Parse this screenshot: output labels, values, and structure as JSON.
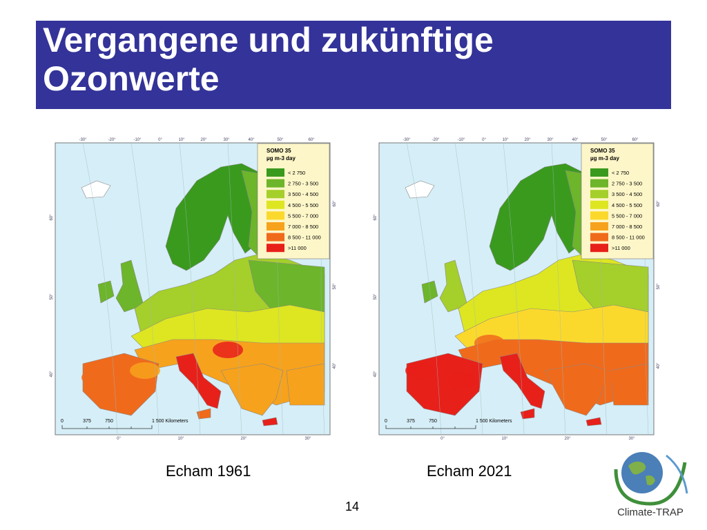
{
  "title": "Vergangene und zukünftige Ozonwerte",
  "legend": {
    "title": "SOMO 35",
    "unit": "µg m-3 day",
    "items": [
      {
        "label": "< 2 750",
        "color": "#3a9a1e"
      },
      {
        "label": "2 750 - 3 500",
        "color": "#6db52a"
      },
      {
        "label": "3 500 - 4 500",
        "color": "#a5cf2a"
      },
      {
        "label": "4 500 - 5 500",
        "color": "#dde620"
      },
      {
        "label": "5 500 - 7 000",
        "color": "#fbd92c"
      },
      {
        "label": "7 000 - 8 500",
        "color": "#f7a21c"
      },
      {
        "label": "8 500 - 11 000",
        "color": "#f06a1c"
      },
      {
        "label": ">11 000",
        "color": "#e8201a"
      }
    ]
  },
  "scale_bar": [
    "0",
    "375",
    "750",
    "1 500 Kilometers"
  ],
  "graticule": {
    "top": [
      "-30°",
      "-20°",
      "-10°",
      "0°",
      "10°",
      "20°",
      "30°",
      "40°",
      "50°",
      "60°"
    ],
    "left": [
      "60°",
      "50°",
      "40°"
    ],
    "right": [
      "60°",
      "50°",
      "40°"
    ],
    "bottom": [
      "0°",
      "10°",
      "20°",
      "30°"
    ]
  },
  "maps": [
    {
      "caption": "Echam 1961"
    },
    {
      "caption": "Echam 2021"
    }
  ],
  "page_number": "14",
  "logo": "Climate-TRAP"
}
